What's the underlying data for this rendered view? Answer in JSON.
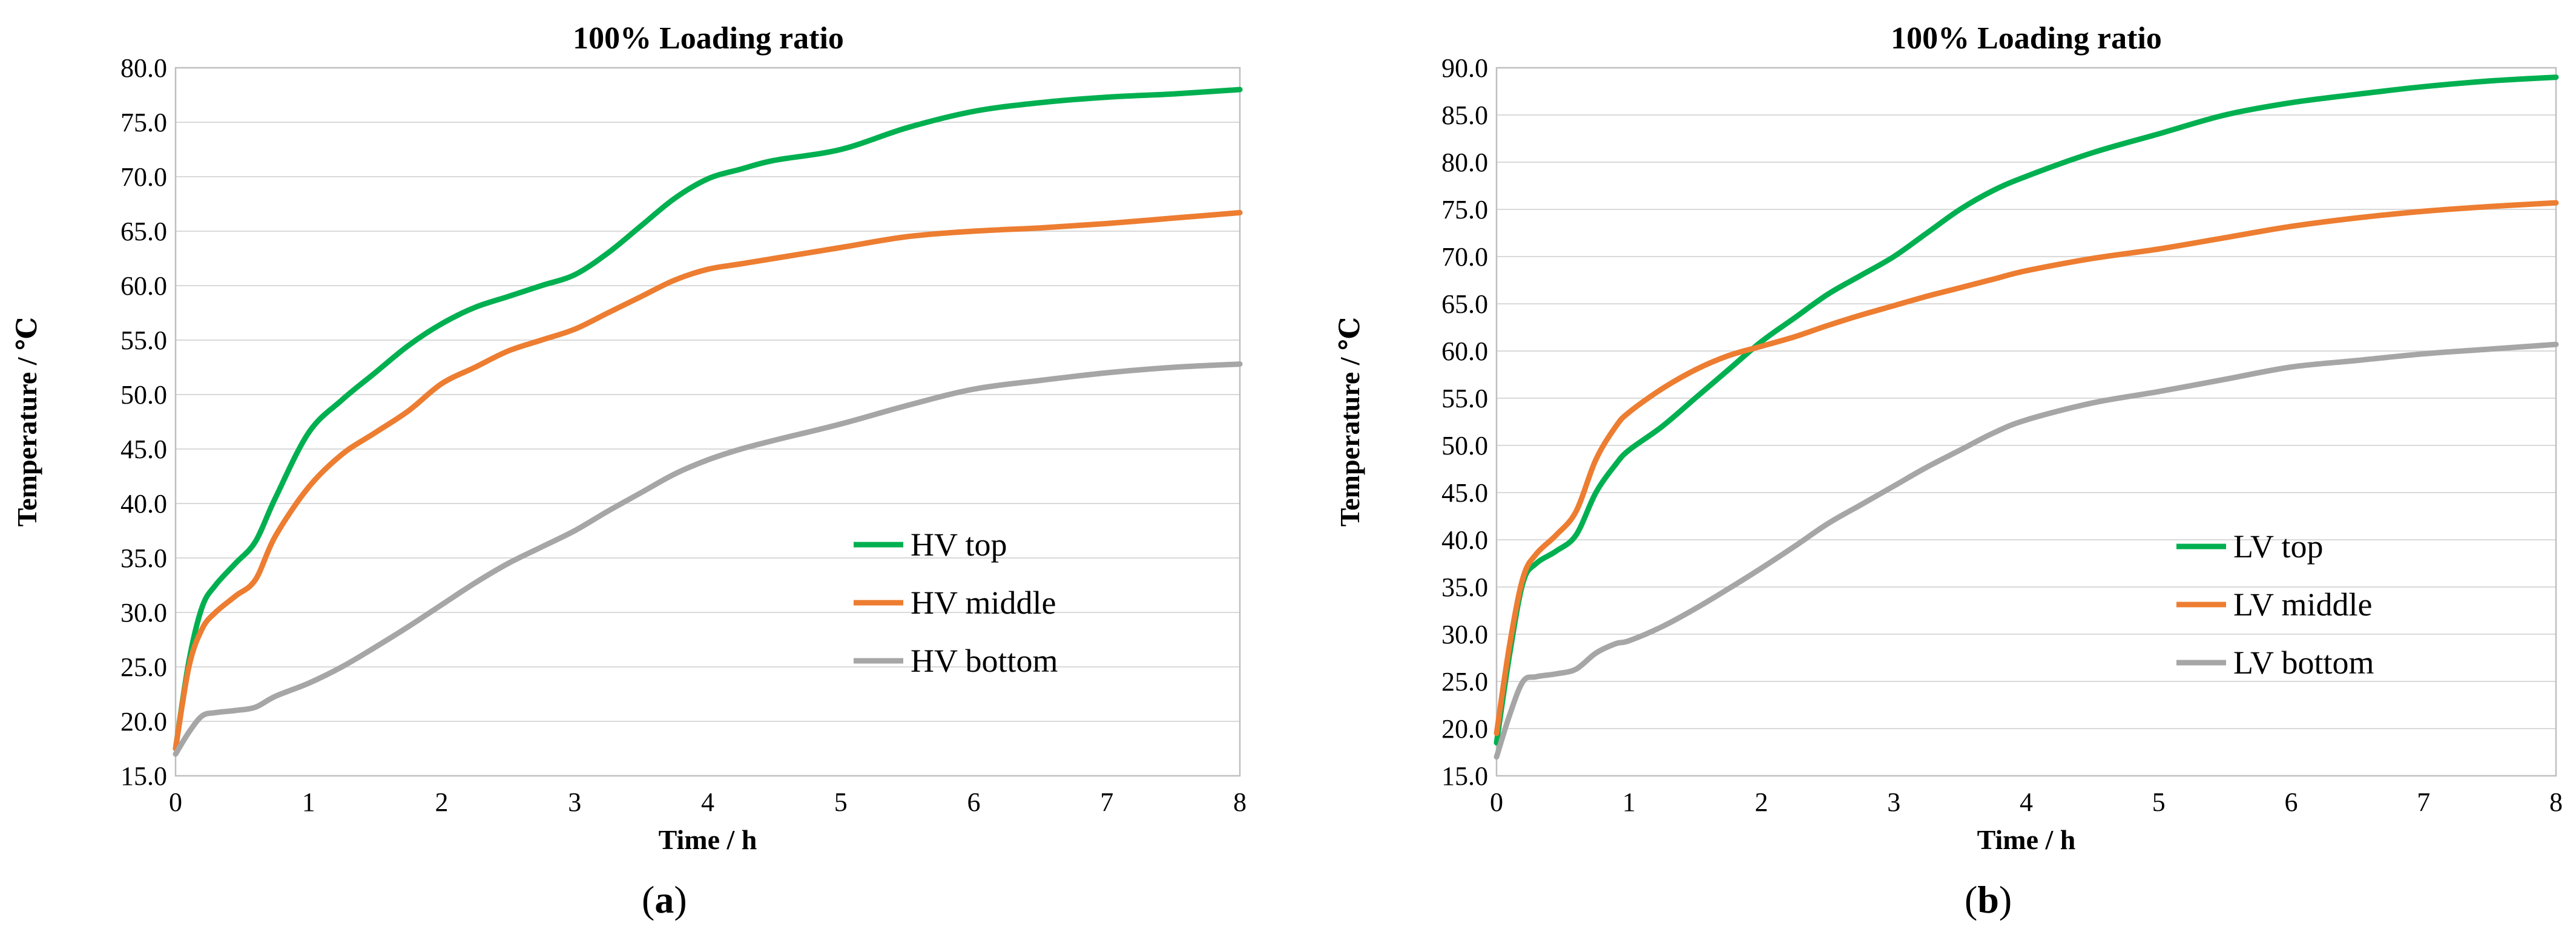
{
  "chart_data": [
    {
      "id": "a",
      "type": "line",
      "title": "100% Loading ratio",
      "xlabel": "Time / h",
      "ylabel": "Temperature / ℃",
      "xlim": [
        0,
        8
      ],
      "ylim": [
        15,
        80
      ],
      "xticks": [
        "0",
        "1",
        "2",
        "3",
        "4",
        "5",
        "6",
        "7",
        "8"
      ],
      "yticks": [
        "15.0",
        "20.0",
        "25.0",
        "30.0",
        "35.0",
        "40.0",
        "45.0",
        "50.0",
        "55.0",
        "60.0",
        "65.0",
        "70.0",
        "75.0",
        "80.0"
      ],
      "grid": true,
      "legend_position": "center-right",
      "caption_letter": "a",
      "series": [
        {
          "name": "HV top",
          "color": "#00b050",
          "x": [
            0,
            0.1,
            0.2,
            0.3,
            0.45,
            0.6,
            0.75,
            1.0,
            1.25,
            1.5,
            1.75,
            2.0,
            2.25,
            2.5,
            2.75,
            3.0,
            3.25,
            3.5,
            3.75,
            4.0,
            4.25,
            4.5,
            5.0,
            5.5,
            6.0,
            6.5,
            7.0,
            7.5,
            8.0
          ],
          "y": [
            17.5,
            25.5,
            30.5,
            32.5,
            34.5,
            36.5,
            40.5,
            46.5,
            49.5,
            52.0,
            54.5,
            56.5,
            58.0,
            59.0,
            60.0,
            61.0,
            63.0,
            65.5,
            68.0,
            69.8,
            70.7,
            71.5,
            72.5,
            74.5,
            76.0,
            76.8,
            77.3,
            77.6,
            78.0
          ]
        },
        {
          "name": "HV middle",
          "color": "#ed7d31",
          "x": [
            0,
            0.1,
            0.2,
            0.3,
            0.45,
            0.6,
            0.75,
            1.0,
            1.25,
            1.5,
            1.75,
            2.0,
            2.25,
            2.5,
            2.75,
            3.0,
            3.25,
            3.5,
            3.75,
            4.0,
            4.25,
            4.5,
            5.0,
            5.5,
            6.0,
            6.5,
            7.0,
            7.5,
            8.0
          ],
          "y": [
            17.5,
            25.0,
            28.5,
            30.0,
            31.5,
            33.0,
            37.0,
            41.5,
            44.5,
            46.5,
            48.5,
            51.0,
            52.5,
            54.0,
            55.0,
            56.0,
            57.5,
            59.0,
            60.5,
            61.5,
            62.0,
            62.5,
            63.5,
            64.5,
            65.0,
            65.3,
            65.7,
            66.2,
            66.7
          ]
        },
        {
          "name": "HV bottom",
          "color": "#a6a6a6",
          "x": [
            0,
            0.1,
            0.2,
            0.3,
            0.45,
            0.6,
            0.75,
            1.0,
            1.25,
            1.5,
            1.75,
            2.0,
            2.25,
            2.5,
            2.75,
            3.0,
            3.25,
            3.5,
            3.75,
            4.0,
            4.25,
            4.5,
            5.0,
            5.5,
            6.0,
            6.5,
            7.0,
            7.5,
            8.0
          ],
          "y": [
            17.0,
            19.0,
            20.5,
            20.8,
            21.0,
            21.3,
            22.3,
            23.5,
            25.0,
            26.8,
            28.7,
            30.7,
            32.7,
            34.5,
            36.0,
            37.5,
            39.3,
            41.0,
            42.7,
            44.0,
            45.0,
            45.8,
            47.3,
            49.0,
            50.5,
            51.3,
            52.0,
            52.5,
            52.8
          ]
        }
      ]
    },
    {
      "id": "b",
      "type": "line",
      "title": "100% Loading ratio",
      "xlabel": "Time / h",
      "ylabel": "Temperature / ℃",
      "xlim": [
        0,
        8
      ],
      "ylim": [
        15,
        90
      ],
      "xticks": [
        "0",
        "1",
        "2",
        "3",
        "4",
        "5",
        "6",
        "7",
        "8"
      ],
      "yticks": [
        "15.0",
        "20.0",
        "25.0",
        "30.0",
        "35.0",
        "40.0",
        "45.0",
        "50.0",
        "55.0",
        "60.0",
        "65.0",
        "70.0",
        "75.0",
        "80.0",
        "85.0",
        "90.0"
      ],
      "grid": true,
      "legend_position": "center-right",
      "caption_letter": "b",
      "series": [
        {
          "name": "LV top",
          "color": "#00b050",
          "x": [
            0,
            0.1,
            0.2,
            0.3,
            0.45,
            0.6,
            0.75,
            0.9,
            1.0,
            1.25,
            1.5,
            1.75,
            2.0,
            2.25,
            2.5,
            2.75,
            3.0,
            3.25,
            3.5,
            3.75,
            4.0,
            4.5,
            5.0,
            5.5,
            6.0,
            6.5,
            7.0,
            7.5,
            8.0
          ],
          "y": [
            18.5,
            28.0,
            35.5,
            37.5,
            38.8,
            40.5,
            45.0,
            48.0,
            49.5,
            52.0,
            55.0,
            58.0,
            61.0,
            63.5,
            66.0,
            68.0,
            70.0,
            72.5,
            75.0,
            77.0,
            78.5,
            81.0,
            83.0,
            85.0,
            86.3,
            87.2,
            88.0,
            88.6,
            89.0
          ]
        },
        {
          "name": "LV middle",
          "color": "#ed7d31",
          "x": [
            0,
            0.1,
            0.2,
            0.3,
            0.45,
            0.6,
            0.75,
            0.9,
            1.0,
            1.25,
            1.5,
            1.75,
            2.0,
            2.25,
            2.5,
            2.75,
            3.0,
            3.25,
            3.5,
            3.75,
            4.0,
            4.5,
            5.0,
            5.5,
            6.0,
            6.5,
            7.0,
            7.5,
            8.0
          ],
          "y": [
            19.5,
            29.0,
            36.0,
            38.5,
            40.5,
            43.0,
            48.5,
            52.0,
            53.5,
            56.0,
            58.0,
            59.5,
            60.5,
            61.5,
            62.7,
            63.8,
            64.8,
            65.8,
            66.7,
            67.6,
            68.5,
            69.8,
            70.8,
            72.0,
            73.2,
            74.1,
            74.8,
            75.3,
            75.7
          ]
        },
        {
          "name": "LV bottom",
          "color": "#a6a6a6",
          "x": [
            0,
            0.1,
            0.2,
            0.3,
            0.45,
            0.6,
            0.75,
            0.9,
            1.0,
            1.25,
            1.5,
            1.75,
            2.0,
            2.25,
            2.5,
            2.75,
            3.0,
            3.25,
            3.5,
            3.75,
            4.0,
            4.5,
            5.0,
            5.5,
            6.0,
            6.5,
            7.0,
            7.5,
            8.0
          ],
          "y": [
            17.0,
            21.5,
            25.0,
            25.5,
            25.8,
            26.3,
            28.0,
            29.0,
            29.3,
            30.8,
            32.7,
            34.8,
            37.0,
            39.3,
            41.7,
            43.7,
            45.7,
            47.7,
            49.5,
            51.3,
            52.7,
            54.5,
            55.7,
            57.0,
            58.3,
            59.0,
            59.7,
            60.2,
            60.7
          ]
        }
      ]
    }
  ]
}
